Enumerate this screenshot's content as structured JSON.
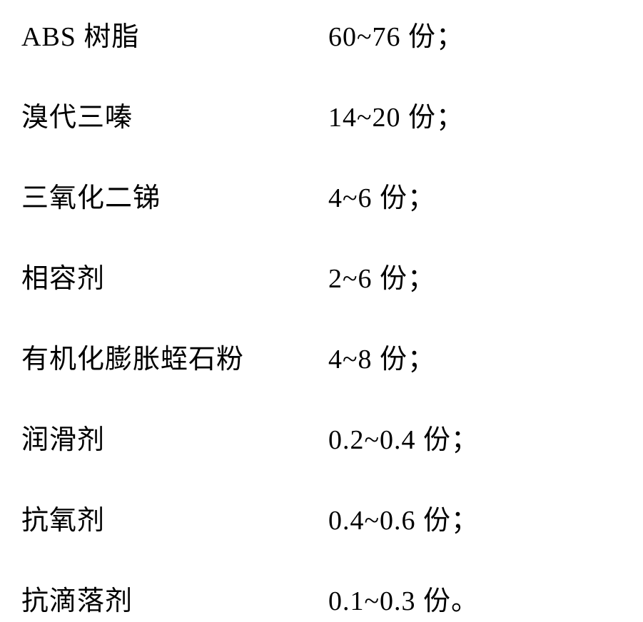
{
  "composition": {
    "type": "table",
    "rows": [
      {
        "name": "ABS 树脂",
        "amount": "60~76 份；"
      },
      {
        "name": "溴代三嗪",
        "amount": "14~20 份；"
      },
      {
        "name": "三氧化二锑",
        "amount": "4~6 份；"
      },
      {
        "name": "相容剂",
        "amount": "2~6 份；"
      },
      {
        "name": "有机化膨胀蛭石粉",
        "amount": "4~8 份；"
      },
      {
        "name": "润滑剂",
        "amount": "0.2~0.4 份；"
      },
      {
        "name": "抗氧剂",
        "amount": "0.4~0.6 份；"
      },
      {
        "name": "抗滴落剂",
        "amount": "0.1~0.3 份。"
      }
    ],
    "styling": {
      "background_color": "#ffffff",
      "text_color": "#000000",
      "font_size": 38,
      "font_family": "SimSun",
      "row_gap": 58,
      "name_column_width": 430
    }
  }
}
